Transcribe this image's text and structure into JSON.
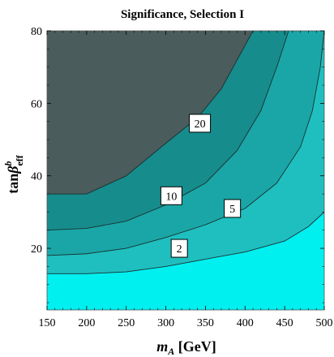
{
  "chart_data": {
    "type": "contour",
    "title": "Significance, Selection I",
    "xlabel": "m_A [GeV]",
    "ylabel": "tanβ^b_eff",
    "xlim": [
      150,
      500
    ],
    "ylim": [
      3,
      80
    ],
    "xticks": [
      150,
      200,
      250,
      300,
      350,
      400,
      450,
      500
    ],
    "yticks": [
      20,
      40,
      60,
      80
    ],
    "grid": false,
    "levels": [
      {
        "value": 2,
        "label": "2",
        "color": "#1fbfbf"
      },
      {
        "value": 5,
        "label": "5",
        "color": "#1aa6a6"
      },
      {
        "value": 10,
        "label": "10",
        "color": "#178c8c"
      },
      {
        "value": 20,
        "label": "20",
        "color": "#4a5c5c"
      }
    ],
    "base_color": "#00f0f0",
    "contours": [
      {
        "value": 2,
        "points": [
          [
            150,
            13
          ],
          [
            200,
            13
          ],
          [
            250,
            13.5
          ],
          [
            300,
            15
          ],
          [
            350,
            17
          ],
          [
            400,
            19
          ],
          [
            450,
            22
          ],
          [
            480,
            26
          ],
          [
            500,
            30
          ]
        ]
      },
      {
        "value": 5,
        "points": [
          [
            150,
            18
          ],
          [
            200,
            18.5
          ],
          [
            250,
            20
          ],
          [
            300,
            23
          ],
          [
            350,
            26.5
          ],
          [
            400,
            31
          ],
          [
            440,
            38
          ],
          [
            470,
            48
          ],
          [
            485,
            58
          ],
          [
            495,
            70
          ],
          [
            500,
            80
          ]
        ]
      },
      {
        "value": 10,
        "points": [
          [
            150,
            25
          ],
          [
            200,
            25.5
          ],
          [
            250,
            27.5
          ],
          [
            300,
            32
          ],
          [
            350,
            38
          ],
          [
            390,
            47
          ],
          [
            420,
            58
          ],
          [
            440,
            70
          ],
          [
            455,
            80
          ]
        ]
      },
      {
        "value": 20,
        "points": [
          [
            150,
            35
          ],
          [
            200,
            35
          ],
          [
            250,
            40
          ],
          [
            300,
            49
          ],
          [
            340,
            56
          ],
          [
            370,
            64
          ],
          [
            400,
            76
          ],
          [
            410,
            80
          ]
        ]
      }
    ],
    "labels": [
      {
        "text": "20",
        "x": 343,
        "y": 54.5
      },
      {
        "text": "10",
        "x": 307,
        "y": 34.5
      },
      {
        "text": "5",
        "x": 384,
        "y": 31
      },
      {
        "text": "2",
        "x": 317,
        "y": 20
      }
    ]
  }
}
